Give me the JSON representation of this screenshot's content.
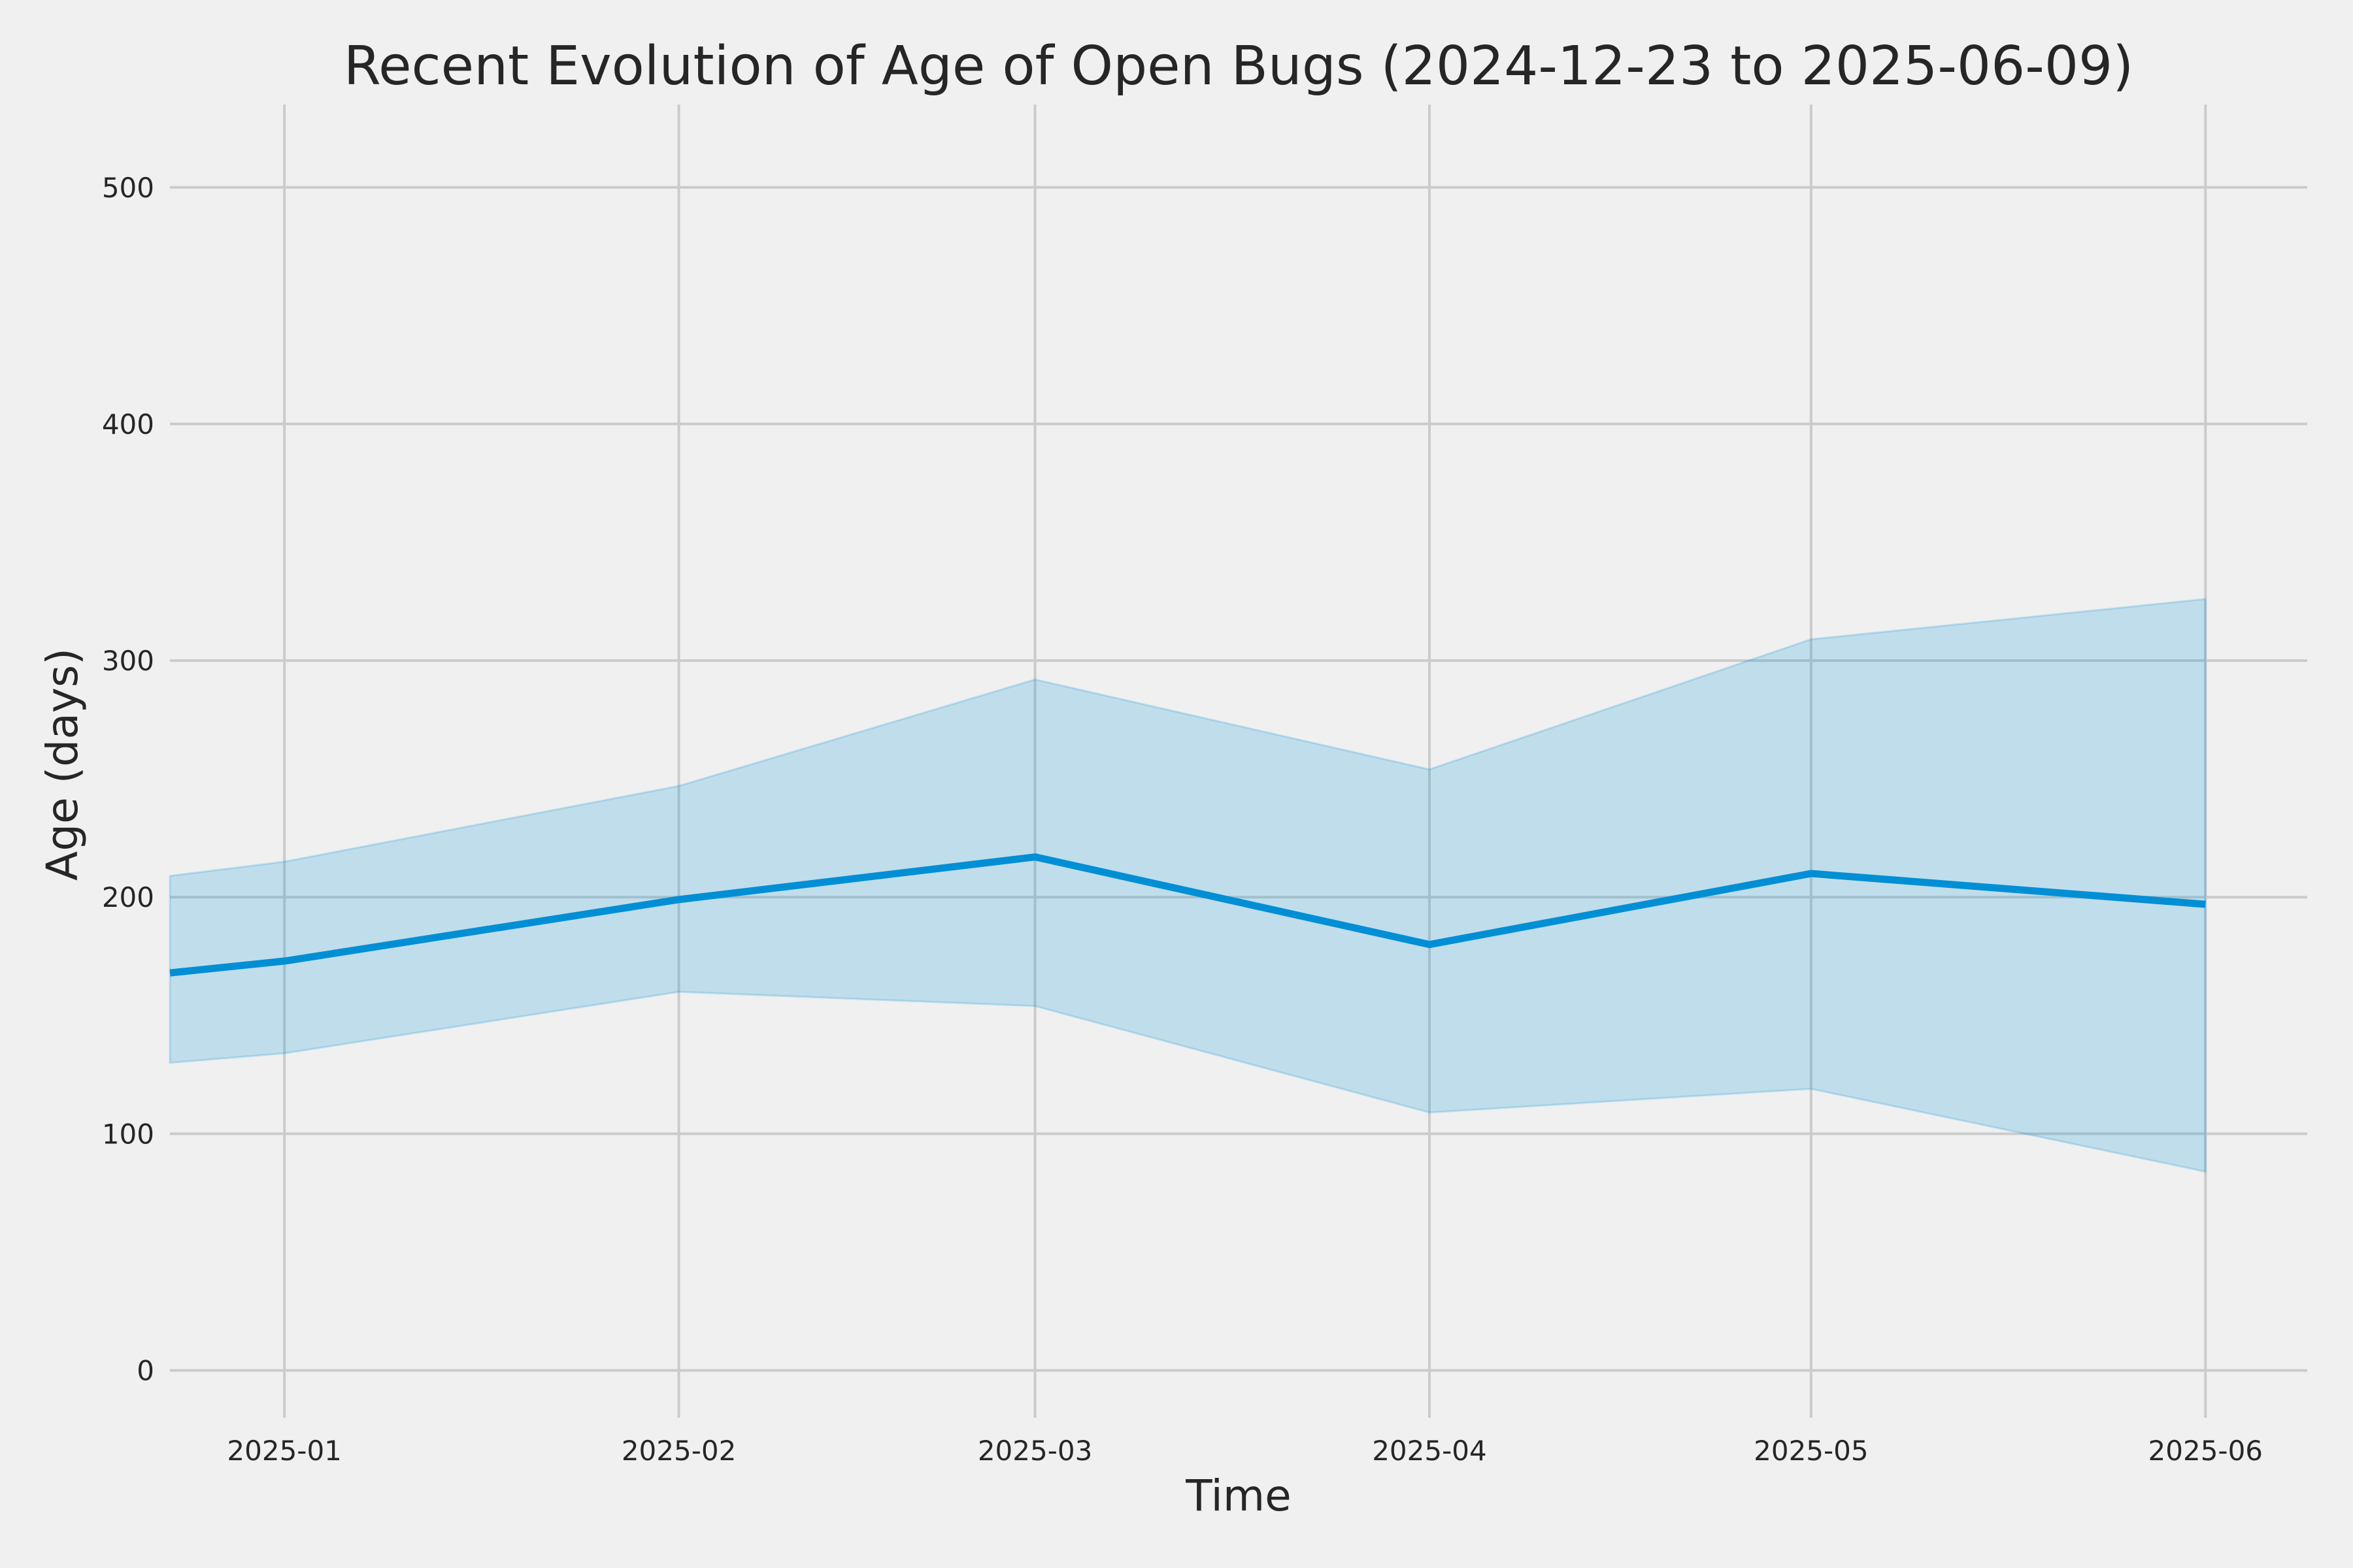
{
  "chart_data": {
    "type": "line",
    "title": "Recent Evolution of Age of Open Bugs (2024-12-23 to 2025-06-09)",
    "xlabel": "Time",
    "ylabel": "Age (days)",
    "x_ticks": [
      "2025-01",
      "2025-02",
      "2025-03",
      "2025-04",
      "2025-05",
      "2025-06"
    ],
    "y_ticks": [
      0,
      100,
      200,
      300,
      400,
      500
    ],
    "xlim": [
      "2024-12-23",
      "2025-06-09"
    ],
    "ylim": [
      -20,
      535
    ],
    "grid": true,
    "x": [
      "2024-12-23",
      "2025-01-01",
      "2025-02-01",
      "2025-03-01",
      "2025-04-01",
      "2025-05-01",
      "2025-06-01"
    ],
    "series": [
      {
        "values": [
          168,
          173,
          199,
          217,
          180,
          210,
          197
        ],
        "lower": [
          130,
          134,
          160,
          154,
          109,
          119,
          84
        ],
        "upper": [
          209,
          215,
          247,
          292,
          254,
          309,
          326
        ]
      }
    ],
    "colors": {
      "line": "#008fd5",
      "band": "#008fd5",
      "background": "#f0f0f0",
      "grid": "#cbcbcb"
    }
  }
}
